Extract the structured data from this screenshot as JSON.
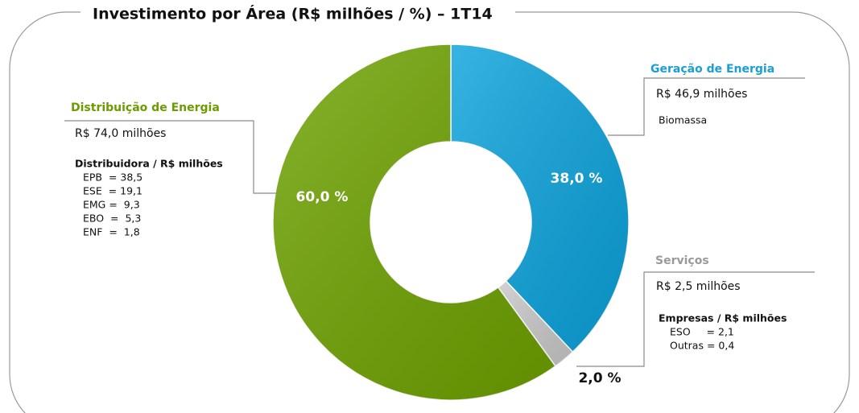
{
  "chart_data": {
    "type": "donut",
    "title": "Investimento por Área (R$ milhões / %) – 1T14",
    "categories": [
      "Geração de Energia",
      "Serviços",
      "Distribuição de Energia"
    ],
    "values": [
      38.0,
      2.0,
      60.0
    ],
    "value_labels": [
      "38,0 %",
      "2,0 %",
      "60,0 %"
    ],
    "colors": [
      "#0ba3dc",
      "#c9c9c9",
      "#6ea200"
    ],
    "value_label_colors": [
      "#ffffff",
      "#111111",
      "#ffffff"
    ],
    "annotations": [
      {
        "lines": [
          "R$ 46,9 milhões",
          "Biomassa"
        ]
      },
      {
        "lines": [
          "R$ 2,5 milhões"
        ],
        "subtitle": "Empresas / R$ milhões",
        "items": [
          "ESO     = 2,1",
          "Outras = 0,4"
        ]
      },
      {
        "lines": [
          "R$ 74,0 milhões"
        ],
        "subtitle": "Distribuidora / R$ milhões",
        "items": [
          "EPB  = 38,5",
          "ESE  = 19,1",
          "EMG =  9,3",
          "EBO  =  5,3",
          "ENF  =  1,8"
        ]
      }
    ]
  }
}
